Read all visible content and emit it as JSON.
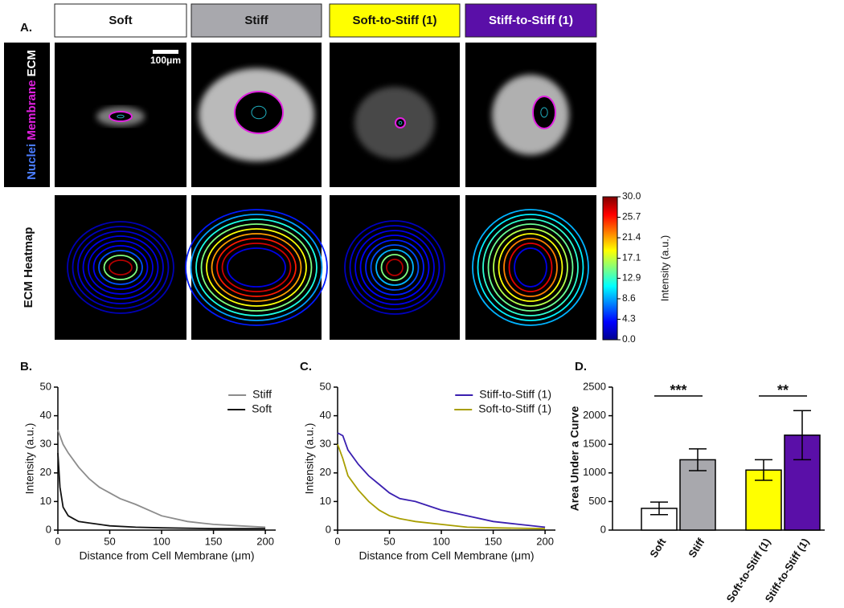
{
  "panel_a": {
    "label": "A.",
    "conditions": [
      "Soft",
      "Stiff",
      "Soft-to-Stiff (1)",
      "Stiff-to-Stiff (1)"
    ],
    "stain_labels": [
      "Nuclei",
      "Membrane",
      "ECM"
    ],
    "heatmap_label": "ECM Heatmap",
    "scale_bar": "100μm",
    "colorbar": {
      "label": "Intensity (a.u.)",
      "lim": [
        0,
        30
      ],
      "ticks": [
        {
          "value": 30,
          "label": "30.0"
        },
        25.7,
        21.4,
        17.1,
        12.9,
        8.6,
        4.3,
        {
          "value": 0,
          "label": "0.0"
        }
      ]
    }
  },
  "chart_data": [
    {
      "type": "line",
      "panel_label": "B.",
      "xlabel": "Distance from Cell Membrane (μm)",
      "ylabel": "Intensity (a.u.)",
      "xlim": [
        0,
        210
      ],
      "ylim": [
        0,
        50
      ],
      "xticks": [
        0,
        50,
        100,
        150,
        200
      ],
      "yticks": [
        0,
        10,
        20,
        30,
        40,
        50
      ],
      "legend": "upper right",
      "series": [
        {
          "name": "Stiff",
          "color": "#8c8c8c",
          "x": [
            0,
            5,
            10,
            20,
            30,
            40,
            50,
            60,
            75,
            100,
            125,
            150,
            175,
            200
          ],
          "values": [
            35,
            30,
            27,
            22,
            18,
            15,
            13,
            11,
            9,
            5,
            3,
            2,
            1.5,
            1
          ]
        },
        {
          "name": "Soft",
          "color": "#111111",
          "x": [
            0,
            2,
            5,
            10,
            15,
            20,
            30,
            40,
            50,
            75,
            100,
            150,
            200
          ],
          "values": [
            27,
            15,
            8,
            5,
            4,
            3,
            2.5,
            2,
            1.5,
            1,
            0.8,
            0.5,
            0.5
          ]
        }
      ]
    },
    {
      "type": "line",
      "panel_label": "C.",
      "xlabel": "Distance from Cell Membrane (μm)",
      "ylabel": "Intensity (a.u.)",
      "xlim": [
        0,
        210
      ],
      "ylim": [
        0,
        50
      ],
      "xticks": [
        0,
        50,
        100,
        150,
        200
      ],
      "yticks": [
        0,
        10,
        20,
        30,
        40,
        50
      ],
      "legend": "upper right",
      "series": [
        {
          "name": "Stiff-to-Stiff (1)",
          "color": "#3a1fb0",
          "x": [
            0,
            5,
            10,
            20,
            30,
            40,
            50,
            60,
            75,
            100,
            125,
            150,
            175,
            200
          ],
          "values": [
            34,
            33,
            28,
            23,
            19,
            16,
            13,
            11,
            10,
            7,
            5,
            3,
            2,
            1
          ]
        },
        {
          "name": "Soft-to-Stiff (1)",
          "color": "#a89e00",
          "x": [
            0,
            5,
            10,
            20,
            30,
            40,
            50,
            60,
            75,
            100,
            125,
            150,
            200
          ],
          "values": [
            30,
            25,
            19,
            14,
            10,
            7,
            5,
            4,
            3,
            2,
            1,
            0.8,
            0.5
          ]
        }
      ]
    },
    {
      "type": "bar",
      "panel_label": "D.",
      "ylabel": "Area Under a Curve",
      "categories": [
        "Soft",
        "Stiff",
        "Soft-to-Stiff (1)",
        "Stiff-to-Stiff (1)"
      ],
      "values": [
        380,
        1230,
        1050,
        1660
      ],
      "errors": [
        110,
        190,
        180,
        430
      ],
      "colors": [
        "#ffffff",
        "#a8a8ad",
        "#ffff00",
        "#5a0fa8"
      ],
      "ylim": [
        0,
        2500
      ],
      "yticks": [
        0,
        500,
        1000,
        1500,
        2000,
        2500
      ],
      "significance": [
        "***",
        "**"
      ]
    }
  ]
}
